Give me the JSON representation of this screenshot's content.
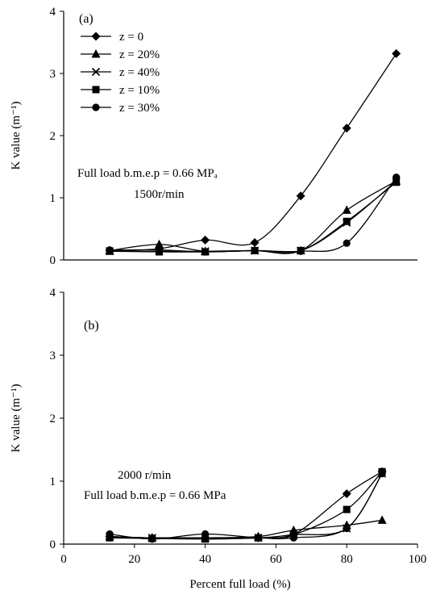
{
  "chart_data": [
    {
      "type": "line",
      "panel_label": "(a)",
      "ylabel": "K value (m⁻¹)",
      "ylim": [
        0,
        4
      ],
      "yticks": [
        "0",
        "1",
        "2",
        "3",
        "4"
      ],
      "xlim": [
        0,
        100
      ],
      "x_ticks_shown": false,
      "legend": {
        "placement": "top-left",
        "entries": [
          "z = 0",
          "z = 20%",
          "z = 40%",
          "z = 10%",
          "z = 30%"
        ]
      },
      "annotations": [
        "Full load b.m.e.p = 0.66 MPₐ",
        "1500r/min"
      ],
      "series": [
        {
          "name": "z = 0",
          "marker": "diamond",
          "points": [
            [
              13,
              0.15
            ],
            [
              27,
              0.18
            ],
            [
              40,
              0.32
            ],
            [
              54,
              0.28
            ],
            [
              67,
              1.03
            ],
            [
              80,
              2.12
            ],
            [
              94,
              3.32
            ]
          ]
        },
        {
          "name": "z = 20%",
          "marker": "triangle",
          "points": [
            [
              13,
              0.15
            ],
            [
              27,
              0.25
            ],
            [
              40,
              0.14
            ],
            [
              54,
              0.15
            ],
            [
              67,
              0.15
            ],
            [
              80,
              0.8
            ],
            [
              94,
              1.27
            ]
          ]
        },
        {
          "name": "z = 40%",
          "marker": "x",
          "points": [
            [
              13,
              0.14
            ],
            [
              27,
              0.14
            ],
            [
              40,
              0.14
            ],
            [
              54,
              0.15
            ],
            [
              67,
              0.15
            ],
            [
              80,
              0.6
            ],
            [
              94,
              1.27
            ]
          ]
        },
        {
          "name": "z = 10%",
          "marker": "square",
          "points": [
            [
              13,
              0.14
            ],
            [
              27,
              0.13
            ],
            [
              40,
              0.13
            ],
            [
              54,
              0.15
            ],
            [
              67,
              0.15
            ],
            [
              80,
              0.62
            ],
            [
              94,
              1.25
            ]
          ]
        },
        {
          "name": "z = 30%",
          "marker": "circle",
          "points": [
            [
              13,
              0.16
            ],
            [
              27,
              0.16
            ],
            [
              40,
              0.13
            ],
            [
              54,
              0.15
            ],
            [
              67,
              0.14
            ],
            [
              80,
              0.27
            ],
            [
              94,
              1.33
            ]
          ]
        }
      ]
    },
    {
      "type": "line",
      "panel_label": "(b)",
      "xlabel": "Percent full load (%)",
      "ylabel": "K value (m⁻¹)",
      "xlim": [
        0,
        100
      ],
      "xticks": [
        "0",
        "20",
        "40",
        "60",
        "80",
        "100"
      ],
      "ylim": [
        0,
        4
      ],
      "yticks": [
        "0",
        "1",
        "2",
        "3",
        "4"
      ],
      "annotations": [
        "2000 r/min",
        "Full load b.m.e.p = 0.66 MPa"
      ],
      "series": [
        {
          "name": "z = 0",
          "marker": "diamond",
          "points": [
            [
              13,
              0.12
            ],
            [
              25,
              0.1
            ],
            [
              40,
              0.1
            ],
            [
              55,
              0.1
            ],
            [
              65,
              0.15
            ],
            [
              80,
              0.8
            ],
            [
              90,
              1.15
            ]
          ]
        },
        {
          "name": "z = 20%",
          "marker": "triangle",
          "points": [
            [
              13,
              0.12
            ],
            [
              25,
              0.1
            ],
            [
              40,
              0.1
            ],
            [
              55,
              0.12
            ],
            [
              65,
              0.22
            ],
            [
              80,
              0.3
            ],
            [
              90,
              0.38
            ]
          ]
        },
        {
          "name": "z = 40%",
          "marker": "x",
          "points": [
            [
              13,
              0.12
            ],
            [
              25,
              0.1
            ],
            [
              40,
              0.1
            ],
            [
              55,
              0.1
            ],
            [
              65,
              0.15
            ],
            [
              80,
              0.25
            ],
            [
              90,
              1.12
            ]
          ]
        },
        {
          "name": "z = 10%",
          "marker": "square",
          "points": [
            [
              13,
              0.1
            ],
            [
              25,
              0.09
            ],
            [
              40,
              0.08
            ],
            [
              55,
              0.1
            ],
            [
              65,
              0.15
            ],
            [
              80,
              0.55
            ],
            [
              90,
              1.15
            ]
          ]
        },
        {
          "name": "z = 30%",
          "marker": "circle",
          "points": [
            [
              13,
              0.16
            ],
            [
              25,
              0.08
            ],
            [
              40,
              0.16
            ],
            [
              55,
              0.1
            ],
            [
              65,
              0.1
            ],
            [
              80,
              0.25
            ],
            [
              90,
              1.12
            ]
          ]
        }
      ]
    }
  ]
}
